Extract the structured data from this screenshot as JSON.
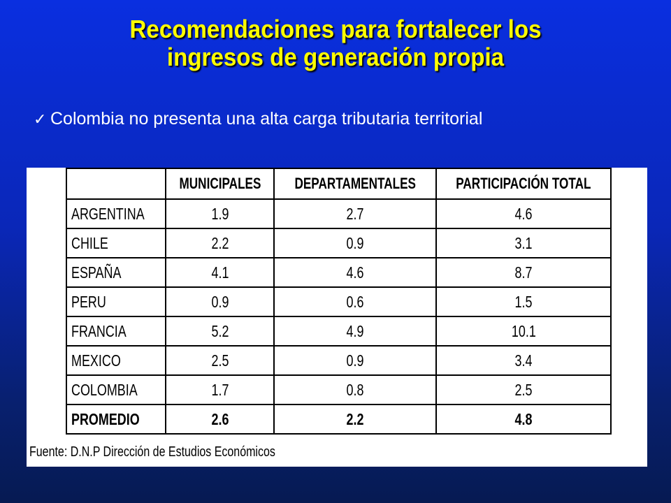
{
  "title_line1": "Recomendaciones para fortalecer los",
  "title_line2": "ingresos de generación propia",
  "bullet": {
    "icon": "check-icon",
    "text": "Colombia no presenta una alta carga tributaria territorial"
  },
  "table": {
    "headers": [
      "",
      "MUNICIPALES",
      "DEPARTAMENTALES",
      "PARTICIPACIÓN TOTAL"
    ],
    "rows": [
      {
        "country": "ARGENTINA",
        "municipales": "1.9",
        "departamentales": "2.7",
        "total": "4.6"
      },
      {
        "country": "CHILE",
        "municipales": "2.2",
        "departamentales": "0.9",
        "total": "3.1"
      },
      {
        "country": "ESPAÑA",
        "municipales": "4.1",
        "departamentales": "4.6",
        "total": "8.7"
      },
      {
        "country": "PERU",
        "municipales": "0.9",
        "departamentales": "0.6",
        "total": "1.5"
      },
      {
        "country": "FRANCIA",
        "municipales": "5.2",
        "departamentales": "4.9",
        "total": "10.1"
      },
      {
        "country": "MEXICO",
        "municipales": "2.5",
        "departamentales": "0.9",
        "total": "3.4"
      },
      {
        "country": "COLOMBIA",
        "municipales": "1.7",
        "departamentales": "0.8",
        "total": "2.5"
      },
      {
        "country": "PROMEDIO",
        "municipales": "2.6",
        "departamentales": "2.2",
        "total": "4.8"
      }
    ]
  },
  "source": "Fuente: D.N.P Dirección de Estudios Económicos",
  "colors": {
    "title": "#ffff00",
    "background_top": "#0a2fe0",
    "background_bottom": "#061a52",
    "text": "#ffffff"
  }
}
